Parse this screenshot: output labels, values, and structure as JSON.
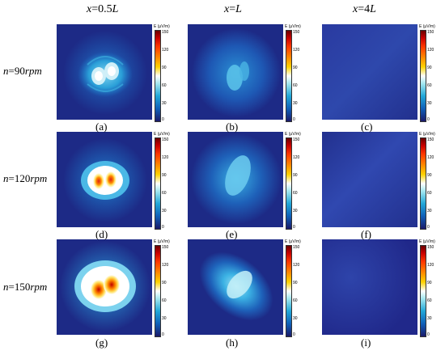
{
  "columns": [
    {
      "prefix": "x",
      "eq": "=",
      "value": "0.5",
      "unit": "L"
    },
    {
      "prefix": "x",
      "eq": "=",
      "value": "",
      "unit": "L"
    },
    {
      "prefix": "x",
      "eq": "=",
      "value": "4",
      "unit": "L"
    }
  ],
  "rows": [
    {
      "prefix": "n",
      "eq": "=",
      "value": "90",
      "unit": "rpm"
    },
    {
      "prefix": "n",
      "eq": "=",
      "value": "120",
      "unit": "rpm"
    },
    {
      "prefix": "n",
      "eq": "=",
      "value": "150",
      "unit": "rpm"
    }
  ],
  "colorbar": {
    "title": "E (μV/m)",
    "ticks": [
      "150",
      "120",
      "90",
      "60",
      "30",
      "0"
    ],
    "range": [
      0,
      150
    ]
  },
  "captions": [
    "(a)",
    "(b)",
    "(c)",
    "(d)",
    "(e)",
    "(f)",
    "(g)",
    "(h)",
    "(i)"
  ]
}
